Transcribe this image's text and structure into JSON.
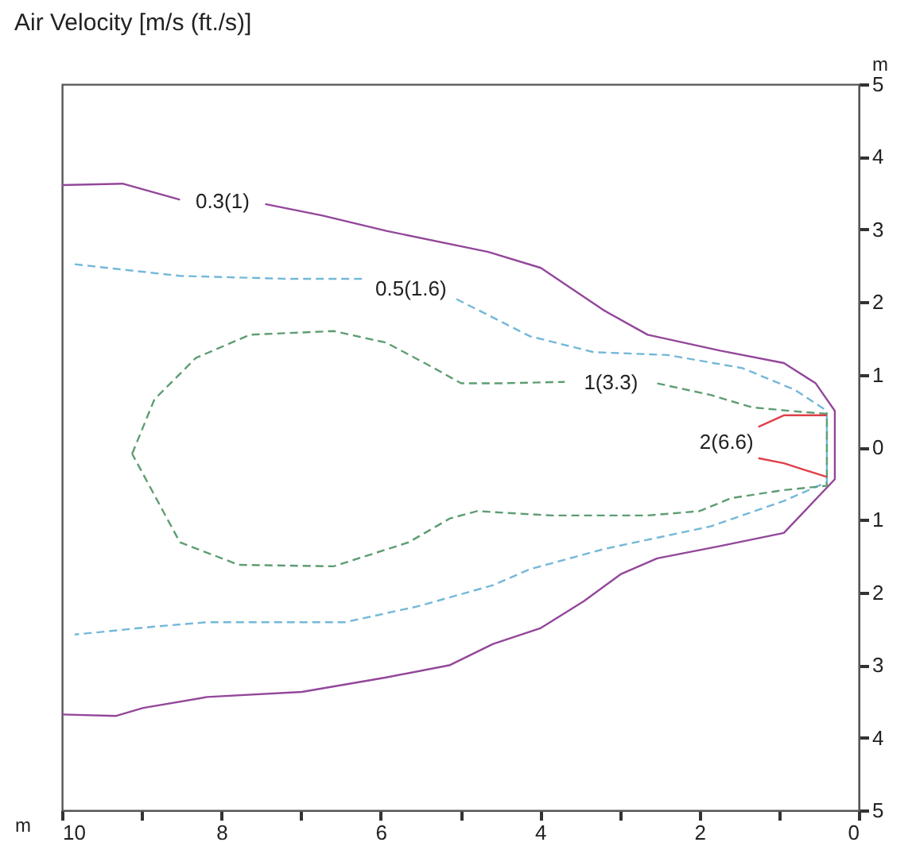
{
  "chart_data": {
    "type": "line",
    "title": "Air Velocity [m/s (ft./s)]",
    "xlabel": "m",
    "ylabel": "m",
    "xlim": [
      10,
      0
    ],
    "ylim": [
      -5,
      5
    ],
    "xticks": [
      10,
      {
        "value": 9,
        "label": null
      },
      8,
      {
        "value": 7,
        "label": null
      },
      6,
      {
        "value": 5,
        "label": null
      },
      4,
      {
        "value": 3,
        "label": null
      },
      2,
      {
        "value": 1,
        "label": null
      },
      0
    ],
    "yticks": [
      {
        "value": -5,
        "label": "5"
      },
      {
        "value": -4,
        "label": "4"
      },
      {
        "value": -3,
        "label": "3"
      },
      {
        "value": -2,
        "label": "2"
      },
      {
        "value": -1,
        "label": "1"
      },
      0,
      1,
      2,
      3,
      4,
      5
    ],
    "grid": false,
    "series": [
      {
        "name": "0.3(1)",
        "color": "#93479a",
        "line_style": "solid",
        "x": [
          10,
          9.24,
          8.52,
          null,
          7.45,
          6.73,
          5.93,
          4.65,
          3.99,
          3.19,
          2.65,
          1.74,
          0.94,
          0.54,
          0.3,
          0.3,
          0.94,
          1.74,
          2.53,
          2.99,
          3.45,
          3.99,
          4.59,
          5.13,
          5.93,
          6.99,
          8.18,
          8.98,
          9.32,
          10
        ],
        "values": [
          3.61,
          3.63,
          3.41,
          null,
          3.35,
          3.19,
          2.98,
          2.69,
          2.47,
          1.88,
          1.55,
          1.33,
          1.16,
          0.88,
          0.5,
          -0.44,
          -1.18,
          -1.36,
          -1.53,
          -1.75,
          -2.12,
          -2.49,
          -2.71,
          -3.0,
          -3.17,
          -3.37,
          -3.44,
          -3.59,
          -3.7,
          -3.68
        ]
      },
      {
        "name": "0.5(1.6)",
        "color": "#74b8d8",
        "line_style": "dashed",
        "x": [
          9.84,
          8.52,
          7.19,
          6.19,
          null,
          5.05,
          4.65,
          4.13,
          3.33,
          2.4,
          1.46,
          0.8,
          0.4,
          0.4,
          0.94,
          1.86,
          3.19,
          4.13,
          4.59,
          5.53,
          6.45,
          8.18,
          8.84,
          9.84
        ],
        "values": [
          2.52,
          2.36,
          2.32,
          2.32,
          null,
          2.04,
          1.82,
          1.53,
          1.31,
          1.27,
          1.09,
          0.79,
          0.5,
          -0.48,
          -0.74,
          -1.09,
          -1.4,
          -1.68,
          -1.9,
          -2.19,
          -2.41,
          -2.41,
          -2.47,
          -2.58
        ]
      },
      {
        "name": "1(3.3)",
        "color": "#5e9d72",
        "line_style": "dashed",
        "x": [
          9.12,
          8.84,
          8.32,
          7.64,
          6.59,
          5.93,
          5.33,
          4.99,
          4.53,
          3.69,
          null,
          2.53,
          1.86,
          1.34,
          0.86,
          0.4,
          0.4,
          0.94,
          1.6,
          2.0,
          2.65,
          3.85,
          4.79,
          5.13,
          5.65,
          6.59,
          7.78,
          8.52,
          9.12
        ],
        "values": [
          -0.09,
          0.66,
          1.23,
          1.55,
          1.6,
          1.44,
          1.09,
          0.88,
          0.88,
          0.9,
          null,
          0.88,
          0.72,
          0.55,
          0.5,
          0.46,
          -0.53,
          -0.59,
          -0.7,
          -0.88,
          -0.94,
          -0.94,
          -0.88,
          -0.98,
          -1.31,
          -1.64,
          -1.62,
          -1.31,
          -0.09
        ]
      },
      {
        "name": "2(6.6)",
        "color": "#e0404a",
        "line_style": "solid",
        "x": [
          0.4,
          0.94,
          1.26,
          null,
          1.26,
          0.94,
          0.4
        ],
        "values": [
          0.44,
          0.44,
          0.28,
          null,
          -0.15,
          -0.22,
          -0.41
        ]
      }
    ]
  }
}
